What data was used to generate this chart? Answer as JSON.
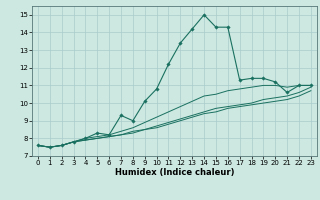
{
  "title": "",
  "xlabel": "Humidex (Indice chaleur)",
  "ylabel": "",
  "bg_color": "#cce8e0",
  "grid_color": "#aacccc",
  "line_color": "#1a7060",
  "xlim": [
    -0.5,
    23.5
  ],
  "ylim": [
    7,
    15.5
  ],
  "yticks": [
    7,
    8,
    9,
    10,
    11,
    12,
    13,
    14,
    15
  ],
  "xticks": [
    0,
    1,
    2,
    3,
    4,
    5,
    6,
    7,
    8,
    9,
    10,
    11,
    12,
    13,
    14,
    15,
    16,
    17,
    18,
    19,
    20,
    21,
    22,
    23
  ],
  "series": [
    [
      7.6,
      7.5,
      7.6,
      7.8,
      8.0,
      8.3,
      8.2,
      9.3,
      9.0,
      10.1,
      10.8,
      12.2,
      13.4,
      14.2,
      15.0,
      14.3,
      14.3,
      11.3,
      11.4,
      11.4,
      11.2,
      10.6,
      11.0,
      11.0
    ],
    [
      7.6,
      7.5,
      7.6,
      7.8,
      8.0,
      8.1,
      8.2,
      8.4,
      8.6,
      8.9,
      9.2,
      9.5,
      9.8,
      10.1,
      10.4,
      10.5,
      10.7,
      10.8,
      10.9,
      11.0,
      11.0,
      10.9,
      11.0,
      11.0
    ],
    [
      7.6,
      7.5,
      7.6,
      7.8,
      7.9,
      8.0,
      8.1,
      8.2,
      8.4,
      8.5,
      8.7,
      8.9,
      9.1,
      9.3,
      9.5,
      9.7,
      9.8,
      9.9,
      10.0,
      10.2,
      10.3,
      10.4,
      10.6,
      10.9
    ],
    [
      7.6,
      7.5,
      7.6,
      7.8,
      7.9,
      8.0,
      8.1,
      8.2,
      8.3,
      8.5,
      8.6,
      8.8,
      9.0,
      9.2,
      9.4,
      9.5,
      9.7,
      9.8,
      9.9,
      10.0,
      10.1,
      10.2,
      10.4,
      10.7
    ]
  ],
  "tick_fontsize": 5.0,
  "xlabel_fontsize": 6.0
}
